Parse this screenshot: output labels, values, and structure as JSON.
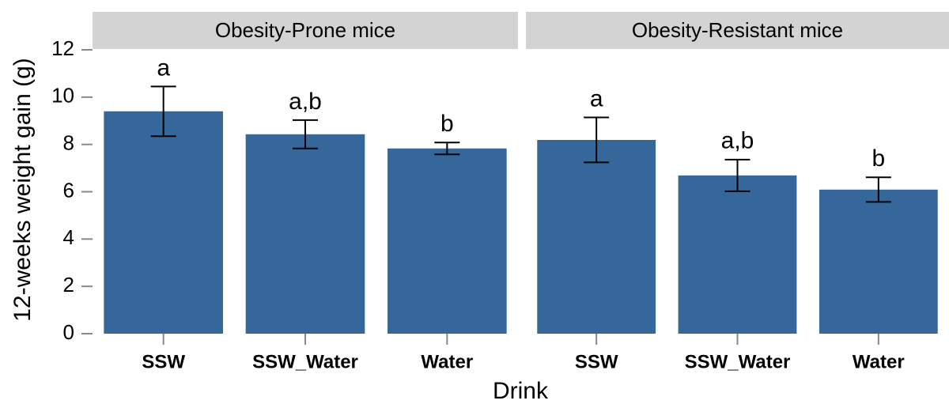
{
  "ylabel": "12-weeks weight gain (g)",
  "xlabel": "Drink",
  "chart_data": [
    {
      "type": "bar",
      "title": "Obesity-Prone mice",
      "categories": [
        "SSW",
        "SSW_Water",
        "Water"
      ],
      "values": [
        9.4,
        8.43,
        7.83
      ],
      "errors": [
        1.05,
        0.6,
        0.25
      ],
      "annotations": [
        "a",
        "a,b",
        "b"
      ],
      "color": "#35679a",
      "ylim": [
        0,
        12
      ],
      "yticks": [
        0,
        2,
        4,
        6,
        8,
        10,
        12
      ]
    },
    {
      "type": "bar",
      "title": "Obesity-Resistant mice",
      "categories": [
        "SSW",
        "SSW_Water",
        "Water"
      ],
      "values": [
        8.19,
        6.69,
        6.09
      ],
      "errors": [
        0.95,
        0.67,
        0.52
      ],
      "annotations": [
        "a",
        "a,b",
        "b"
      ],
      "color": "#35679a",
      "ylim": [
        0,
        12
      ]
    }
  ]
}
